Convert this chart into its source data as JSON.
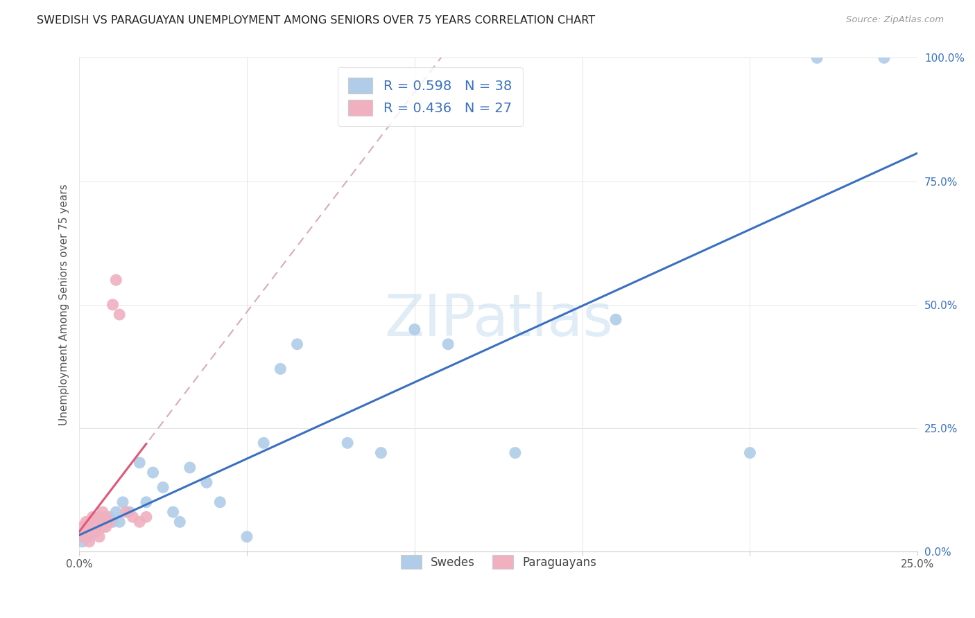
{
  "title": "SWEDISH VS PARAGUAYAN UNEMPLOYMENT AMONG SENIORS OVER 75 YEARS CORRELATION CHART",
  "source": "Source: ZipAtlas.com",
  "ylabel": "Unemployment Among Seniors over 75 years",
  "xlim": [
    0.0,
    0.25
  ],
  "ylim": [
    0.0,
    1.0
  ],
  "xticks": [
    0.0,
    0.05,
    0.1,
    0.15,
    0.2,
    0.25
  ],
  "yticks": [
    0.0,
    0.25,
    0.5,
    0.75,
    1.0
  ],
  "xticklabels": [
    "0.0%",
    "",
    "",
    "",
    "",
    "25.0%"
  ],
  "yticklabels": [
    "0.0%",
    "25.0%",
    "50.0%",
    "75.0%",
    "100.0%"
  ],
  "blue_r_text": "R = 0.598",
  "blue_n_text": "N = 38",
  "pink_r_text": "R = 0.436",
  "pink_n_text": "N = 27",
  "blue_scatter_color": "#b0cce8",
  "pink_scatter_color": "#f0b0c0",
  "blue_line_color": "#3a70c0",
  "pink_line_color": "#e05878",
  "pink_dash_color": "#daaabb",
  "legend_text_color": "#3a70c0",
  "watermark_color": "#cce0f0",
  "bg_color": "#ffffff",
  "grid_color": "#e0e0e0",
  "blue_x": [
    0.001,
    0.002,
    0.003,
    0.003,
    0.004,
    0.005,
    0.005,
    0.006,
    0.007,
    0.008,
    0.009,
    0.01,
    0.011,
    0.012,
    0.013,
    0.015,
    0.018,
    0.02,
    0.022,
    0.025,
    0.028,
    0.03,
    0.033,
    0.038,
    0.042,
    0.05,
    0.055,
    0.06,
    0.065,
    0.08,
    0.09,
    0.1,
    0.11,
    0.13,
    0.16,
    0.2,
    0.22,
    0.24
  ],
  "blue_y": [
    0.02,
    0.04,
    0.05,
    0.03,
    0.06,
    0.05,
    0.04,
    0.07,
    0.05,
    0.06,
    0.07,
    0.06,
    0.08,
    0.06,
    0.1,
    0.08,
    0.18,
    0.1,
    0.16,
    0.13,
    0.08,
    0.06,
    0.17,
    0.14,
    0.1,
    0.03,
    0.22,
    0.37,
    0.42,
    0.22,
    0.2,
    0.45,
    0.42,
    0.2,
    0.47,
    0.2,
    1.0,
    1.0
  ],
  "pink_x": [
    0.001,
    0.001,
    0.002,
    0.002,
    0.003,
    0.003,
    0.003,
    0.004,
    0.004,
    0.005,
    0.005,
    0.006,
    0.006,
    0.006,
    0.007,
    0.007,
    0.007,
    0.008,
    0.008,
    0.009,
    0.01,
    0.011,
    0.012,
    0.014,
    0.016,
    0.018,
    0.02
  ],
  "pink_y": [
    0.03,
    0.05,
    0.04,
    0.06,
    0.04,
    0.06,
    0.02,
    0.07,
    0.05,
    0.06,
    0.04,
    0.07,
    0.05,
    0.03,
    0.06,
    0.05,
    0.08,
    0.07,
    0.05,
    0.06,
    0.5,
    0.55,
    0.48,
    0.08,
    0.07,
    0.06,
    0.07
  ]
}
